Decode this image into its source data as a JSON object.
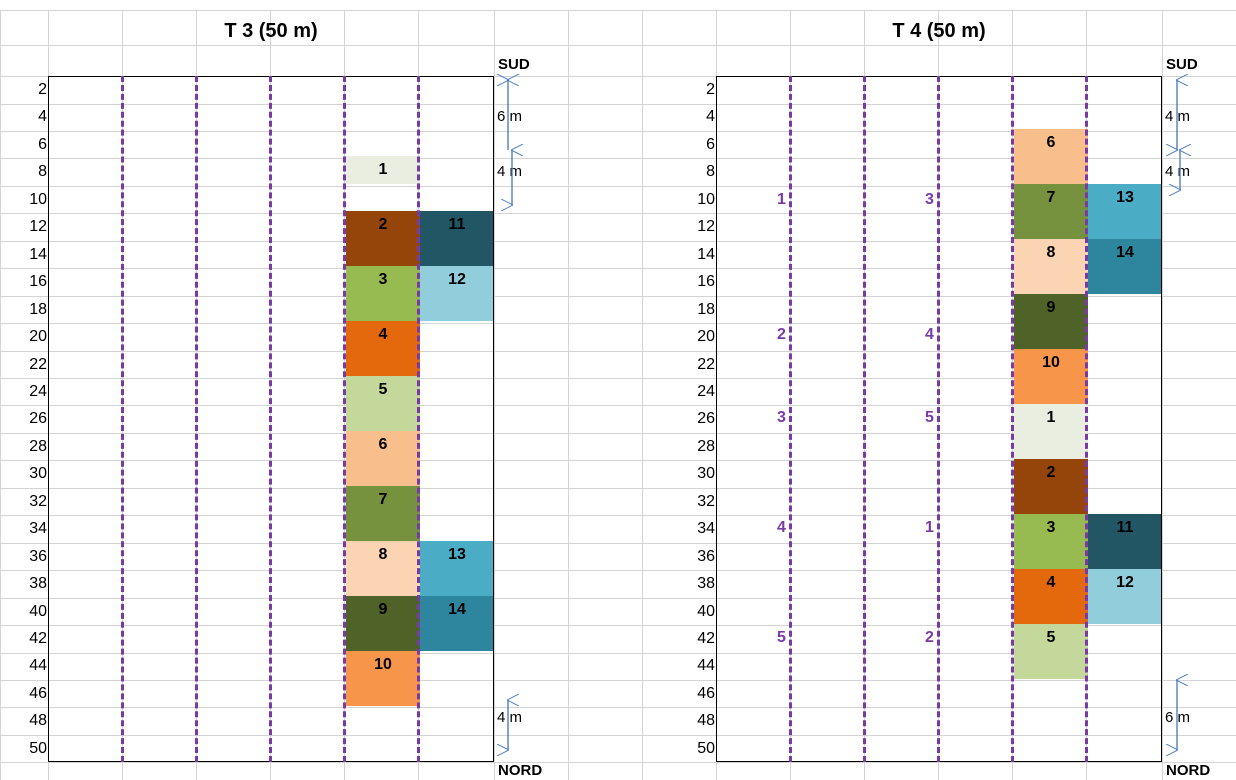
{
  "transects": [
    {
      "title": "T 3 (50 m)",
      "top_label": "SUD",
      "bottom_label": "NORD",
      "dims": [
        "6 m",
        "4 m",
        "4 m"
      ],
      "rows": [
        "2",
        "4",
        "6",
        "8",
        "10",
        "12",
        "14",
        "16",
        "18",
        "20",
        "22",
        "24",
        "26",
        "28",
        "30",
        "32",
        "34",
        "36",
        "38",
        "40",
        "42",
        "44",
        "46",
        "48",
        "50"
      ],
      "blocks": [
        {
          "num": "1",
          "color": "#eaeee0",
          "text": "#000"
        },
        {
          "num": "2",
          "color": "#96450a",
          "text": "#000"
        },
        {
          "num": "3",
          "color": "#97bb51",
          "text": "#000"
        },
        {
          "num": "4",
          "color": "#e3690c",
          "text": "#000"
        },
        {
          "num": "5",
          "color": "#c4d89c",
          "text": "#000"
        },
        {
          "num": "6",
          "color": "#f8be8c",
          "text": "#000"
        },
        {
          "num": "7",
          "color": "#77923e",
          "text": "#000"
        },
        {
          "num": "8",
          "color": "#fbd4b4",
          "text": "#000"
        },
        {
          "num": "9",
          "color": "#4f6227",
          "text": "#000"
        },
        {
          "num": "10",
          "color": "#f7964a",
          "text": "#000"
        },
        {
          "num": "11",
          "color": "#225664",
          "text": "#000"
        },
        {
          "num": "12",
          "color": "#92cddc",
          "text": "#000"
        },
        {
          "num": "13",
          "color": "#4bacc6",
          "text": "#000"
        },
        {
          "num": "14",
          "color": "#2e869e",
          "text": "#000"
        }
      ]
    },
    {
      "title": "T 4 (50 m)",
      "top_label": "SUD",
      "bottom_label": "NORD",
      "dims": [
        "4 m",
        "4 m",
        "6 m"
      ],
      "rows": [
        "2",
        "4",
        "6",
        "8",
        "10",
        "12",
        "14",
        "16",
        "18",
        "20",
        "22",
        "24",
        "26",
        "28",
        "30",
        "32",
        "34",
        "36",
        "38",
        "40",
        "42",
        "44",
        "46",
        "48",
        "50"
      ],
      "blocks": [
        {
          "num": "6",
          "color": "#f8be8c",
          "text": "#000"
        },
        {
          "num": "7",
          "color": "#77923e",
          "text": "#000"
        },
        {
          "num": "13",
          "color": "#4bacc6",
          "text": "#000"
        },
        {
          "num": "8",
          "color": "#fbd4b4",
          "text": "#000"
        },
        {
          "num": "14",
          "color": "#2e869e",
          "text": "#000"
        },
        {
          "num": "9",
          "color": "#4f6227",
          "text": "#000"
        },
        {
          "num": "10",
          "color": "#f7964a",
          "text": "#000"
        },
        {
          "num": "1",
          "color": "#eaeee0",
          "text": "#000"
        },
        {
          "num": "2",
          "color": "#96450a",
          "text": "#000"
        },
        {
          "num": "3",
          "color": "#97bb51",
          "text": "#000"
        },
        {
          "num": "11",
          "color": "#225664",
          "text": "#000"
        },
        {
          "num": "4",
          "color": "#e3690c",
          "text": "#000"
        },
        {
          "num": "12",
          "color": "#92cddc",
          "text": "#000"
        },
        {
          "num": "5",
          "color": "#c4d89c",
          "text": "#000"
        }
      ],
      "plot_numbers": [
        "1",
        "3",
        "2",
        "4",
        "3",
        "5",
        "4",
        "1",
        "5",
        "2"
      ]
    }
  ],
  "colors": {
    "grid": "#d4d4d4",
    "dash": "#7a3aa6",
    "arrow": "#4a7cc0"
  }
}
